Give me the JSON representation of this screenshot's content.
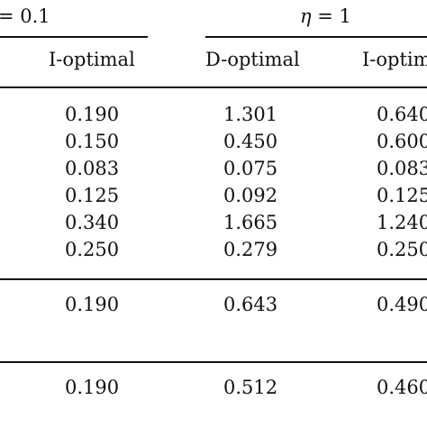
{
  "header": {
    "group_left_label": "= 0.1",
    "group_right_eta": "η",
    "group_right_rest": " = 1"
  },
  "columns": {
    "col1": "I-optimal",
    "col2": "D-optimal",
    "col3": "I-optim"
  },
  "block1": {
    "rows": [
      [
        "0.190",
        "1.301",
        "0.640"
      ],
      [
        "0.150",
        "0.450",
        "0.600"
      ],
      [
        "0.083",
        "0.075",
        "0.083"
      ],
      [
        "0.125",
        "0.092",
        "0.125"
      ],
      [
        "0.340",
        "1.665",
        "1.240"
      ],
      [
        "0.250",
        "0.279",
        "0.250"
      ]
    ]
  },
  "block2": {
    "rows": [
      [
        "0.190",
        "0.643",
        "0.490"
      ]
    ]
  },
  "block3": {
    "rows": [
      [
        "0.190",
        "0.512",
        "0.460"
      ]
    ]
  }
}
